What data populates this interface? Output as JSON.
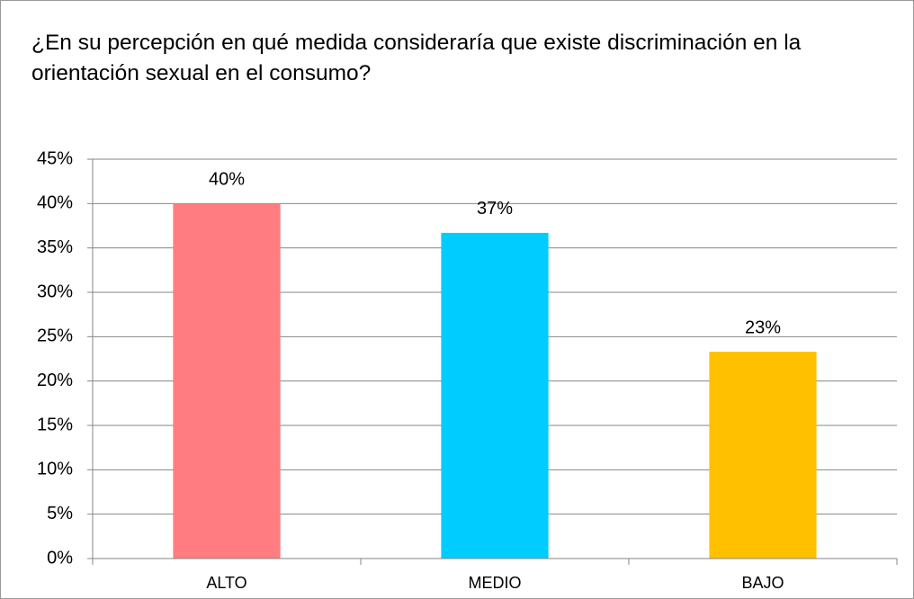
{
  "chart_data": {
    "type": "bar",
    "title": "¿En su percepción en qué medida consideraría que existe discriminación en la orientación sexual en el consumo?",
    "categories": [
      "ALTO",
      "MEDIO",
      "BAJO"
    ],
    "values": [
      40,
      36.7,
      23.3
    ],
    "value_labels": [
      "40%",
      "37%",
      "23%"
    ],
    "colors": [
      "#ff7c80",
      "#00ccff",
      "#ffc000"
    ],
    "ylim": [
      0,
      45
    ],
    "yticks": [
      {
        "value": 0,
        "label": "0%"
      },
      {
        "value": 5,
        "label": "5%"
      },
      {
        "value": 10,
        "label": "10%"
      },
      {
        "value": 15,
        "label": "15%"
      },
      {
        "value": 20,
        "label": "20%"
      },
      {
        "value": 25,
        "label": "25%"
      },
      {
        "value": 30,
        "label": "30%"
      },
      {
        "value": 35,
        "label": "35%"
      },
      {
        "value": 40,
        "label": "40%"
      },
      {
        "value": 45,
        "label": "45%"
      }
    ],
    "grid": true
  }
}
